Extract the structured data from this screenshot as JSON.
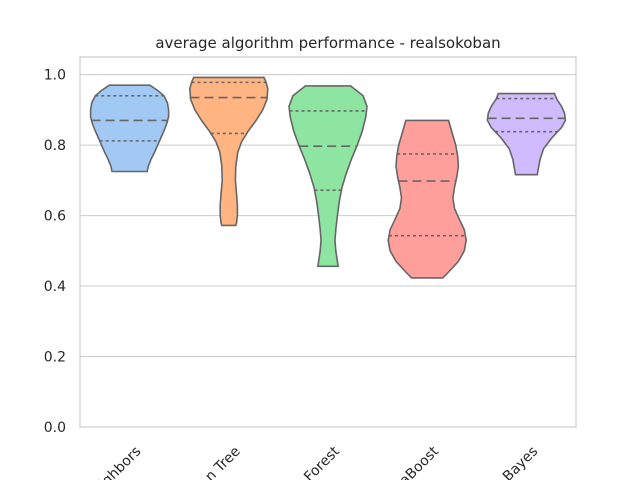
{
  "chart_data": {
    "type": "violin",
    "title": "average algorithm performance - realsokoban",
    "xlabel": "",
    "ylabel": "",
    "ylim": [
      0.0,
      1.05
    ],
    "yticks": [
      "0.0",
      "0.2",
      "0.4",
      "0.6",
      "0.8",
      "1.0"
    ],
    "grid": "horizontal",
    "legend": "none",
    "categories": [
      "ighbors",
      "n Tree",
      "Forest",
      "aBoost",
      "Bayes"
    ],
    "series": [
      {
        "color": "#a1c9f4",
        "min": 0.725,
        "max": 0.97,
        "q1": 0.812,
        "median": 0.87,
        "q3": 0.94,
        "profile": [
          [
            0.725,
            0.45
          ],
          [
            0.74,
            0.48
          ],
          [
            0.76,
            0.55
          ],
          [
            0.78,
            0.64
          ],
          [
            0.8,
            0.72
          ],
          [
            0.82,
            0.8
          ],
          [
            0.84,
            0.88
          ],
          [
            0.86,
            0.95
          ],
          [
            0.88,
            1.0
          ],
          [
            0.9,
            1.0
          ],
          [
            0.92,
            0.97
          ],
          [
            0.94,
            0.88
          ],
          [
            0.955,
            0.72
          ],
          [
            0.97,
            0.52
          ]
        ]
      },
      {
        "color": "#ffb482",
        "min": 0.572,
        "max": 0.992,
        "q1": 0.833,
        "median": 0.935,
        "q3": 0.978,
        "profile": [
          [
            0.572,
            0.18
          ],
          [
            0.58,
            0.2
          ],
          [
            0.6,
            0.22
          ],
          [
            0.63,
            0.22
          ],
          [
            0.66,
            0.2
          ],
          [
            0.7,
            0.17
          ],
          [
            0.74,
            0.18
          ],
          [
            0.78,
            0.23
          ],
          [
            0.81,
            0.33
          ],
          [
            0.84,
            0.5
          ],
          [
            0.87,
            0.7
          ],
          [
            0.9,
            0.87
          ],
          [
            0.93,
            0.98
          ],
          [
            0.96,
            1.0
          ],
          [
            0.98,
            0.95
          ],
          [
            0.992,
            0.9
          ]
        ]
      },
      {
        "color": "#8de5a1",
        "min": 0.456,
        "max": 0.968,
        "q1": 0.672,
        "median": 0.797,
        "q3": 0.897,
        "profile": [
          [
            0.456,
            0.26
          ],
          [
            0.47,
            0.24
          ],
          [
            0.5,
            0.2
          ],
          [
            0.53,
            0.18
          ],
          [
            0.56,
            0.2
          ],
          [
            0.6,
            0.24
          ],
          [
            0.64,
            0.29
          ],
          [
            0.68,
            0.36
          ],
          [
            0.72,
            0.47
          ],
          [
            0.76,
            0.6
          ],
          [
            0.8,
            0.75
          ],
          [
            0.84,
            0.88
          ],
          [
            0.88,
            0.97
          ],
          [
            0.91,
            1.0
          ],
          [
            0.94,
            0.9
          ],
          [
            0.968,
            0.58
          ]
        ]
      },
      {
        "color": "#ff9f9b",
        "min": 0.423,
        "max": 0.87,
        "q1": 0.543,
        "median": 0.698,
        "q3": 0.775,
        "profile": [
          [
            0.423,
            0.4
          ],
          [
            0.44,
            0.55
          ],
          [
            0.47,
            0.8
          ],
          [
            0.5,
            0.95
          ],
          [
            0.53,
            1.0
          ],
          [
            0.56,
            0.95
          ],
          [
            0.59,
            0.82
          ],
          [
            0.62,
            0.7
          ],
          [
            0.65,
            0.66
          ],
          [
            0.68,
            0.7
          ],
          [
            0.71,
            0.76
          ],
          [
            0.74,
            0.8
          ],
          [
            0.77,
            0.78
          ],
          [
            0.8,
            0.73
          ],
          [
            0.83,
            0.65
          ],
          [
            0.85,
            0.6
          ],
          [
            0.87,
            0.55
          ]
        ]
      },
      {
        "color": "#d0bbff",
        "min": 0.716,
        "max": 0.946,
        "q1": 0.838,
        "median": 0.876,
        "q3": 0.932,
        "profile": [
          [
            0.716,
            0.28
          ],
          [
            0.73,
            0.3
          ],
          [
            0.76,
            0.35
          ],
          [
            0.79,
            0.44
          ],
          [
            0.82,
            0.65
          ],
          [
            0.85,
            0.9
          ],
          [
            0.87,
            1.0
          ],
          [
            0.89,
            0.98
          ],
          [
            0.91,
            0.9
          ],
          [
            0.93,
            0.78
          ],
          [
            0.946,
            0.72
          ]
        ]
      }
    ]
  }
}
